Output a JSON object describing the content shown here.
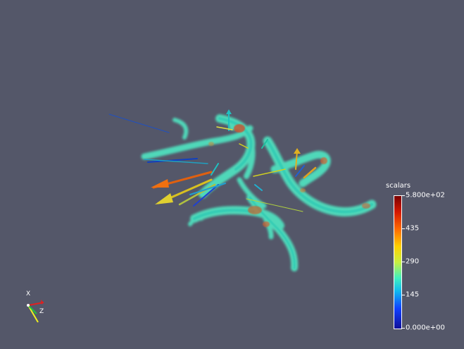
{
  "scalar_bar": {
    "title": "scalars",
    "labels": {
      "max": "5.800e+02",
      "l435": "435",
      "l290": "290",
      "l145": "145",
      "min": "0.000e+00"
    }
  },
  "axes": {
    "x_label": "X",
    "z_label": "Z"
  },
  "colors": {
    "background": "#545769",
    "vessel": "#4fe6c2",
    "hot": "#d0502a",
    "axis_x": "#e02020",
    "axis_y": "#f0f020",
    "axis_z": "#20c040"
  }
}
